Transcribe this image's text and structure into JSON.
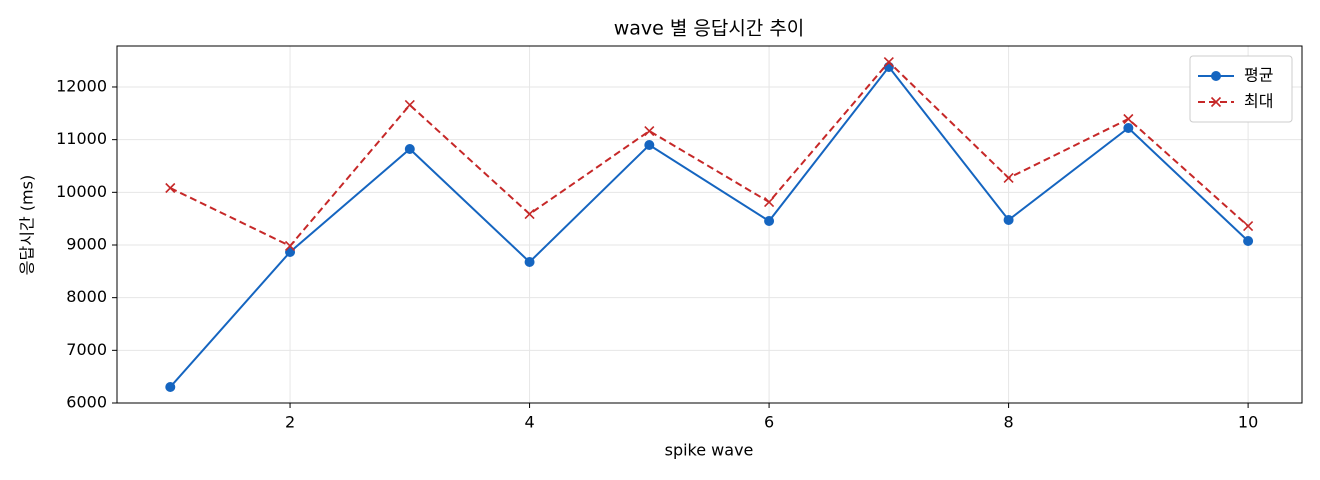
{
  "chart_data": {
    "type": "line",
    "title": "wave 별 응답시간 추이",
    "xlabel": "spike wave",
    "ylabel": "응답시간 (ms)",
    "x": [
      1,
      2,
      3,
      4,
      5,
      6,
      7,
      8,
      9,
      10
    ],
    "series": [
      {
        "name": "평균",
        "color": "#1565c0",
        "marker": "o",
        "linestyle": "solid",
        "values": [
          6304,
          8867,
          10822,
          8677,
          10898,
          9455,
          12380,
          9475,
          11221,
          9076
        ]
      },
      {
        "name": "최대",
        "color": "#c62828",
        "marker": "x",
        "linestyle": "dashed",
        "values": [
          10082,
          8981,
          11658,
          9588,
          11164,
          9816,
          12474,
          10272,
          11392,
          9360
        ]
      }
    ],
    "xlim": [
      0.555,
      10.45
    ],
    "ylim": [
      6000,
      12778
    ],
    "xticks": [
      2,
      4,
      6,
      8,
      10
    ],
    "yticks": [
      6000,
      7000,
      8000,
      9000,
      10000,
      11000,
      12000
    ],
    "grid": true,
    "legend": "upper right"
  }
}
